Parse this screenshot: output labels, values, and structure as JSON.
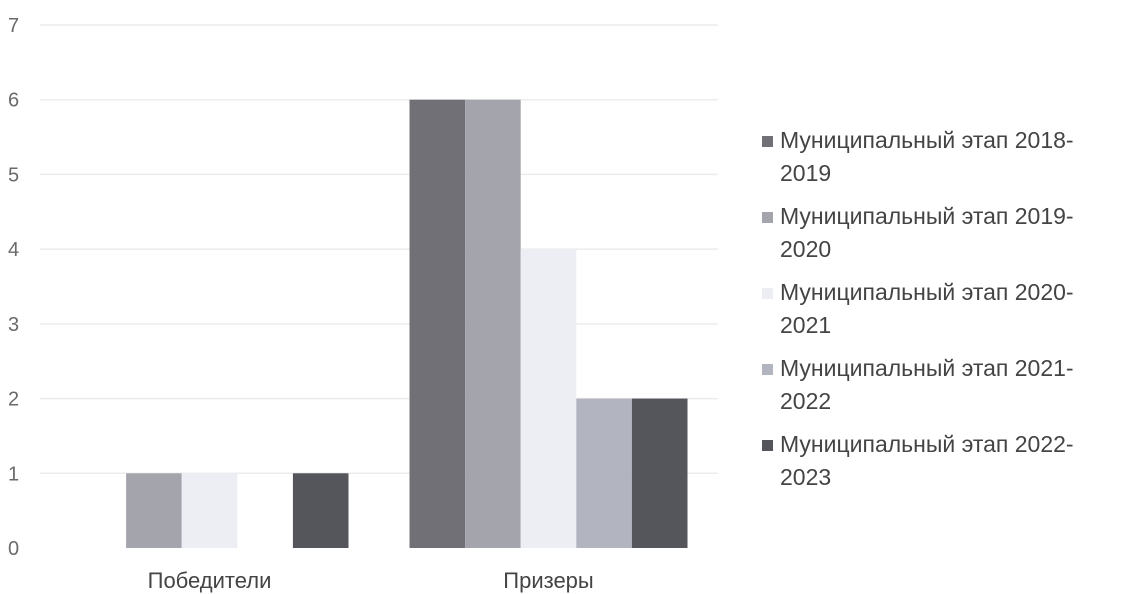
{
  "chart_data": {
    "type": "bar",
    "categories": [
      "Победители",
      "Призеры"
    ],
    "series": [
      {
        "name": "Муниципальный этап 2018-2019",
        "values": [
          0,
          6
        ],
        "color": "#707076"
      },
      {
        "name": "Муниципальный этап 2019-2020",
        "values": [
          1,
          6
        ],
        "color": "#a3a4ac"
      },
      {
        "name": "Муниципальный этап 2020-2021",
        "values": [
          1,
          4
        ],
        "color": "#eceef3"
      },
      {
        "name": "Муниципальный этап 2021-2022",
        "values": [
          0,
          2
        ],
        "color": "#b2b4bf"
      },
      {
        "name": "Муниципальный этап 2022-2023",
        "values": [
          1,
          2
        ],
        "color": "#55555c"
      }
    ],
    "y_ticks": [
      "0",
      "1",
      "2",
      "3",
      "4",
      "5",
      "6",
      "7"
    ],
    "ylim": [
      0,
      7
    ],
    "grid": true,
    "legend_position": "right"
  }
}
